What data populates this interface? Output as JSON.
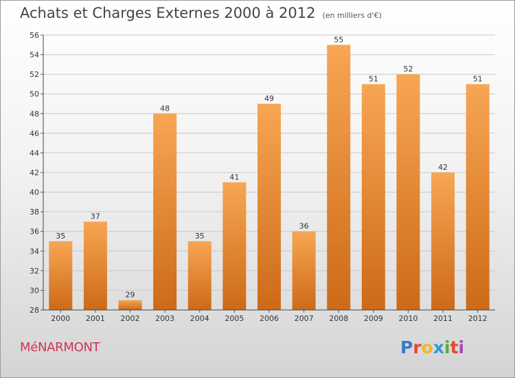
{
  "chart_data": {
    "type": "bar",
    "title": "Achats et Charges Externes 2000 à 2012",
    "subtitle": "(en milliers d'€)",
    "categories": [
      "2000",
      "2001",
      "2002",
      "2003",
      "2004",
      "2005",
      "2006",
      "2007",
      "2008",
      "2009",
      "2010",
      "2011",
      "2012"
    ],
    "values": [
      35,
      37,
      29,
      48,
      35,
      41,
      49,
      36,
      55,
      51,
      52,
      42,
      51
    ],
    "ylim": [
      28,
      56
    ],
    "yticks": [
      28,
      30,
      32,
      34,
      36,
      38,
      40,
      42,
      44,
      46,
      48,
      50,
      52,
      54,
      56
    ],
    "grid": true,
    "bar_color": "#f08a2e",
    "legend": "none"
  },
  "commune": "MéNARMONT",
  "logo": {
    "text": "Proxiti",
    "colors": [
      "#3a78c9",
      "#e8452c",
      "#f3b81f",
      "#2f9ad6",
      "#5aab3a",
      "#e8452c",
      "#a24bb0"
    ]
  }
}
